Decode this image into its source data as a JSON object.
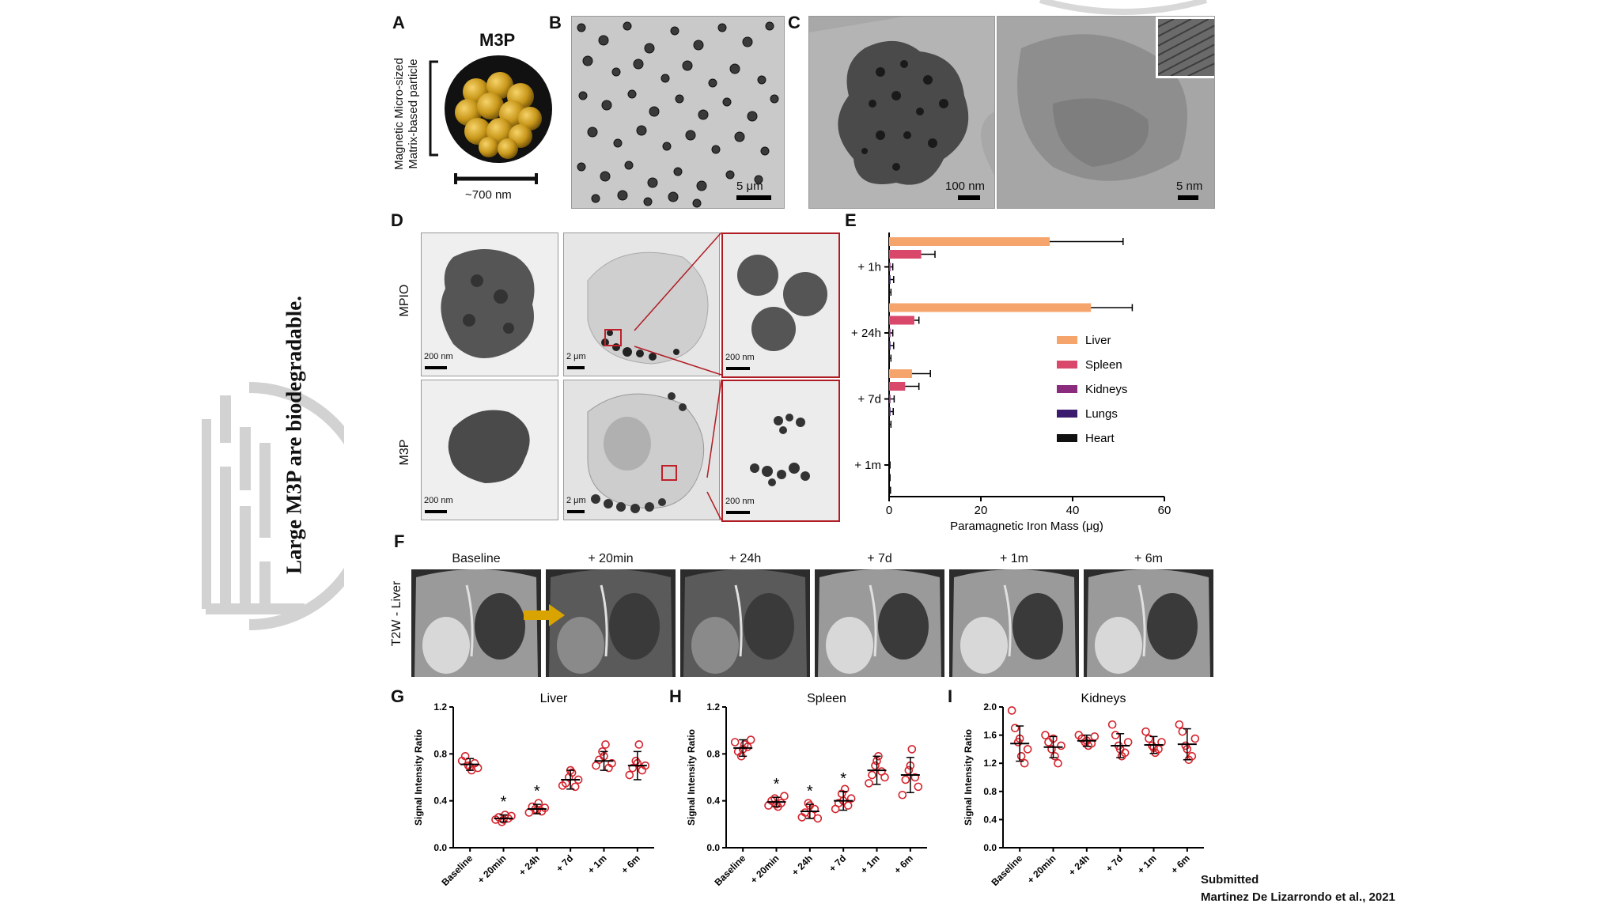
{
  "side_title": "Large M3P are biodegradable.",
  "footer": {
    "line1": "Submitted",
    "line2": "Martinez De Lizarrondo et al., 2021"
  },
  "panelA": {
    "label": "A",
    "title": "M3P",
    "side_line1": "Magnetic Micro-sized",
    "side_line2": "Matrix-based particle",
    "size": "~700 nm"
  },
  "panelB": {
    "label": "B",
    "scale": "5 μm"
  },
  "panelC": {
    "label": "C",
    "scale_left": "100 nm",
    "scale_right": "5 nm"
  },
  "panelD": {
    "label": "D",
    "row1": "MPIO",
    "row2": "M3P",
    "scales": [
      "200 nm",
      "2 μm",
      "200 nm",
      "200 nm",
      "2 μm",
      "200 nm"
    ]
  },
  "panelF": {
    "label": "F",
    "side_label": "T2W - Liver",
    "timepoints": [
      "Baseline",
      "+ 20min",
      "+ 24h",
      "+ 7d",
      "+ 1m",
      "+ 6m"
    ]
  },
  "colors": {
    "Liver": "#f5a46c",
    "Spleen": "#d9476a",
    "Kidneys": "#8a2b7e",
    "Lungs": "#3a1b6e",
    "Heart": "#111111",
    "dots": "#d4222b",
    "arrow": "#d9a400"
  },
  "chart_data": [
    {
      "panel": "E",
      "type": "bar",
      "orientation": "horizontal",
      "categories": [
        "+ 1h",
        "+ 24h",
        "+ 7d",
        "+ 1m"
      ],
      "series": [
        {
          "name": "Liver",
          "values": [
            35,
            44,
            5,
            0
          ],
          "errors": [
            16,
            9,
            4,
            0
          ]
        },
        {
          "name": "Spleen",
          "values": [
            7,
            5.5,
            3.5,
            0
          ],
          "errors": [
            3,
            1,
            3,
            0
          ]
        },
        {
          "name": "Kidneys",
          "values": [
            0.3,
            0.3,
            0.3,
            0
          ],
          "errors": [
            0.5,
            0.5,
            0.8,
            0.2
          ]
        },
        {
          "name": "Lungs",
          "values": [
            0.3,
            0.3,
            0.3,
            0
          ],
          "errors": [
            0.7,
            0.7,
            0.6,
            0.2
          ]
        },
        {
          "name": "Heart",
          "values": [
            0.1,
            0.1,
            0.1,
            0
          ],
          "errors": [
            0.3,
            0.3,
            0.3,
            0.3
          ]
        }
      ],
      "xlabel": "Paramagnetic Iron Mass (μg)",
      "xlim": [
        0,
        60
      ],
      "xticks": [
        "0",
        "20",
        "40",
        "60"
      ]
    },
    {
      "panel": "G",
      "type": "scatter",
      "title": "Liver",
      "ylabel": "Signal Intensity Ratio",
      "ylim": [
        0,
        1.2
      ],
      "yticks": [
        "0.0",
        "0.4",
        "0.8",
        "1.2"
      ],
      "categories": [
        "Baseline",
        "+ 20min",
        "+ 24h",
        "+ 7d",
        "+ 1m",
        "+ 6m"
      ],
      "means": [
        0.71,
        0.25,
        0.33,
        0.58,
        0.74,
        0.7
      ],
      "sd": [
        0.05,
        0.03,
        0.04,
        0.08,
        0.08,
        0.12
      ],
      "points": [
        [
          0.74,
          0.78,
          0.7,
          0.66,
          0.72,
          0.68,
          0.69
        ],
        [
          0.24,
          0.26,
          0.22,
          0.28,
          0.25,
          0.27,
          0.24
        ],
        [
          0.3,
          0.35,
          0.33,
          0.38,
          0.31,
          0.34,
          0.32
        ],
        [
          0.53,
          0.55,
          0.6,
          0.64,
          0.52,
          0.58,
          0.66
        ],
        [
          0.7,
          0.75,
          0.82,
          0.88,
          0.68,
          0.72,
          0.78
        ],
        [
          0.62,
          0.68,
          0.74,
          0.88,
          0.66,
          0.7,
          0.72
        ]
      ],
      "stars": [
        "",
        "*",
        "*",
        "",
        "",
        ""
      ]
    },
    {
      "panel": "H",
      "type": "scatter",
      "title": "Spleen",
      "ylabel": "Signal Intensity Ratio",
      "ylim": [
        0,
        1.2
      ],
      "yticks": [
        "0.0",
        "0.4",
        "0.8",
        "1.2"
      ],
      "categories": [
        "Baseline",
        "+ 20min",
        "+ 24h",
        "+ 7d",
        "+ 1m",
        "+ 6m"
      ],
      "means": [
        0.85,
        0.39,
        0.31,
        0.4,
        0.66,
        0.62
      ],
      "sd": [
        0.07,
        0.04,
        0.06,
        0.08,
        0.12,
        0.15
      ],
      "points": [
        [
          0.9,
          0.82,
          0.78,
          0.88,
          0.86,
          0.92,
          0.84
        ],
        [
          0.36,
          0.4,
          0.42,
          0.35,
          0.38,
          0.44,
          0.37
        ],
        [
          0.26,
          0.3,
          0.38,
          0.28,
          0.33,
          0.25,
          0.36
        ],
        [
          0.33,
          0.38,
          0.46,
          0.5,
          0.36,
          0.42,
          0.4
        ],
        [
          0.55,
          0.62,
          0.7,
          0.78,
          0.65,
          0.6,
          0.74
        ],
        [
          0.45,
          0.58,
          0.66,
          0.84,
          0.6,
          0.52,
          0.7
        ]
      ],
      "stars": [
        "",
        "*",
        "*",
        "*",
        "",
        ""
      ]
    },
    {
      "panel": "I",
      "type": "scatter",
      "title": "Kidneys",
      "ylabel": "Signal Intensity Ratio",
      "ylim": [
        0,
        2.0
      ],
      "yticks": [
        "0.0",
        "0.4",
        "0.8",
        "1.2",
        "1.6",
        "2.0"
      ],
      "categories": [
        "Baseline",
        "+ 20min",
        "+ 24h",
        "+ 7d",
        "+ 1m",
        "+ 6m"
      ],
      "means": [
        1.48,
        1.43,
        1.52,
        1.45,
        1.46,
        1.47
      ],
      "sd": [
        0.25,
        0.15,
        0.08,
        0.17,
        0.12,
        0.22
      ],
      "points": [
        [
          1.95,
          1.7,
          1.5,
          1.3,
          1.2,
          1.4,
          1.55
        ],
        [
          1.6,
          1.5,
          1.4,
          1.3,
          1.2,
          1.45,
          1.55
        ],
        [
          1.6,
          1.55,
          1.5,
          1.45,
          1.48,
          1.58,
          1.52
        ],
        [
          1.75,
          1.6,
          1.45,
          1.3,
          1.35,
          1.5,
          1.4
        ],
        [
          1.65,
          1.55,
          1.45,
          1.35,
          1.4,
          1.5,
          1.42
        ],
        [
          1.75,
          1.65,
          1.45,
          1.25,
          1.3,
          1.55,
          1.4
        ]
      ],
      "stars": [
        "",
        "",
        "",
        "",
        "",
        ""
      ]
    }
  ]
}
